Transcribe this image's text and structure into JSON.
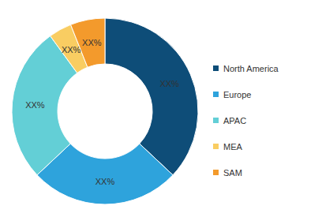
{
  "chart_data": {
    "type": "pie",
    "categories": [
      "North America",
      "Europe",
      "APAC",
      "MEA",
      "SAM"
    ],
    "values": [
      37,
      26,
      27,
      4,
      6
    ],
    "value_labels": [
      "XX%",
      "XX%",
      "XX%",
      "XX%",
      "XX%"
    ],
    "colors": [
      "#0e4d78",
      "#2ea3dc",
      "#63cfd6",
      "#f9cd62",
      "#f39a2c"
    ],
    "data_labels": true,
    "legend": "right"
  }
}
